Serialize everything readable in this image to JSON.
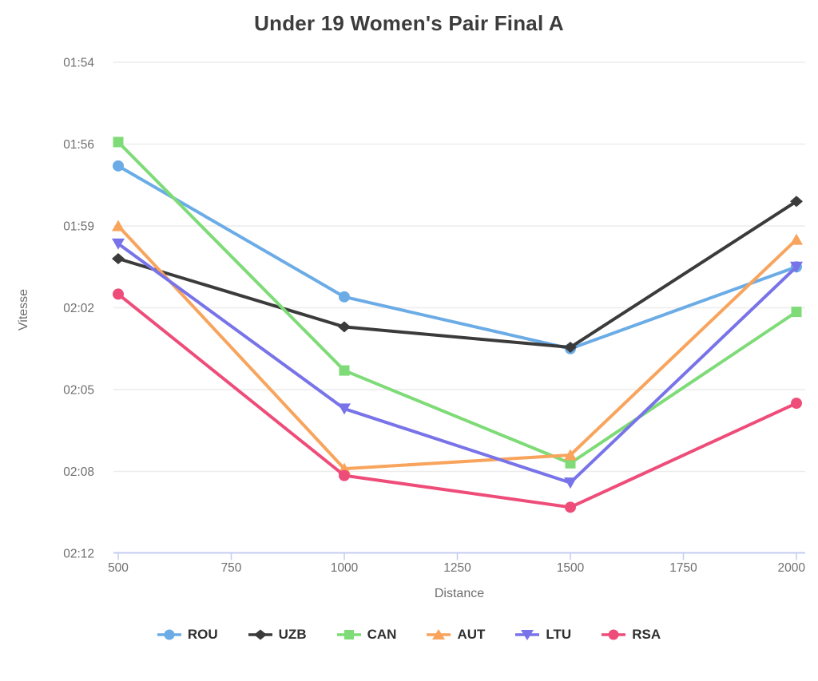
{
  "title": "Under 19 Women's Pair Final A",
  "colors": {
    "title_text": "#3c3c3c",
    "axis_title_text": "#6e6e6e",
    "tick_label_text": "#6f6f6f",
    "legend_text": "#2f2f2f",
    "gridline": "#ececec",
    "axis_line": "#c5cdf0",
    "background": "#ffffff"
  },
  "chart_data": {
    "type": "line",
    "title": "Under 19 Women's Pair Final A",
    "xlabel": "Distance",
    "ylabel": "Vitesse",
    "x": [
      500,
      1000,
      1500,
      2000
    ],
    "x_ticks": [
      500,
      750,
      1000,
      1250,
      1500,
      1750,
      2000
    ],
    "xlim": [
      500,
      2000
    ],
    "y_ticks": [
      "01:54",
      "01:56",
      "01:59",
      "02:02",
      "02:05",
      "02:08",
      "02:12"
    ],
    "y_tick_seconds": [
      114,
      116,
      119,
      122,
      125,
      128,
      132
    ],
    "y_top_label": "01:54",
    "y_bottom_label": "02:12",
    "grid": true,
    "legend_position": "bottom",
    "series": [
      {
        "name": "ROU",
        "color": "#6bace6",
        "marker": "circle",
        "values_seconds": [
          116.8,
          121.6,
          123.5,
          120.5
        ],
        "values": [
          "01:56.8",
          "02:01.6",
          "02:03.5",
          "02:00.5"
        ]
      },
      {
        "name": "UZB",
        "color": "#3b3b3b",
        "marker": "diamond",
        "values_seconds": [
          120.2,
          122.7,
          123.45,
          118.1
        ],
        "values": [
          "02:00.2",
          "02:02.7",
          "02:03.5",
          "01:58.1"
        ]
      },
      {
        "name": "CAN",
        "color": "#7edb77",
        "marker": "square",
        "values_seconds": [
          115.95,
          124.3,
          127.7,
          122.15
        ],
        "values": [
          "01:56.0",
          "02:04.3",
          "02:07.7",
          "02:02.2"
        ]
      },
      {
        "name": "AUT",
        "color": "#f8a45c",
        "marker": "triangle-up",
        "values_seconds": [
          119.0,
          127.9,
          127.4,
          119.5
        ],
        "values": [
          "01:59.0",
          "02:07.9",
          "02:07.4",
          "01:59.5"
        ]
      },
      {
        "name": "LTU",
        "color": "#7873e8",
        "marker": "triangle-down",
        "values_seconds": [
          119.65,
          125.7,
          128.55,
          120.5
        ],
        "values": [
          "01:59.7",
          "02:05.7",
          "02:08.6",
          "02:00.5"
        ]
      },
      {
        "name": "RSA",
        "color": "#ee4d79",
        "marker": "circle",
        "values_seconds": [
          121.5,
          128.2,
          129.75,
          125.5
        ],
        "values": [
          "02:01.5",
          "02:08.2",
          "02:09.8",
          "02:05.5"
        ]
      }
    ]
  }
}
